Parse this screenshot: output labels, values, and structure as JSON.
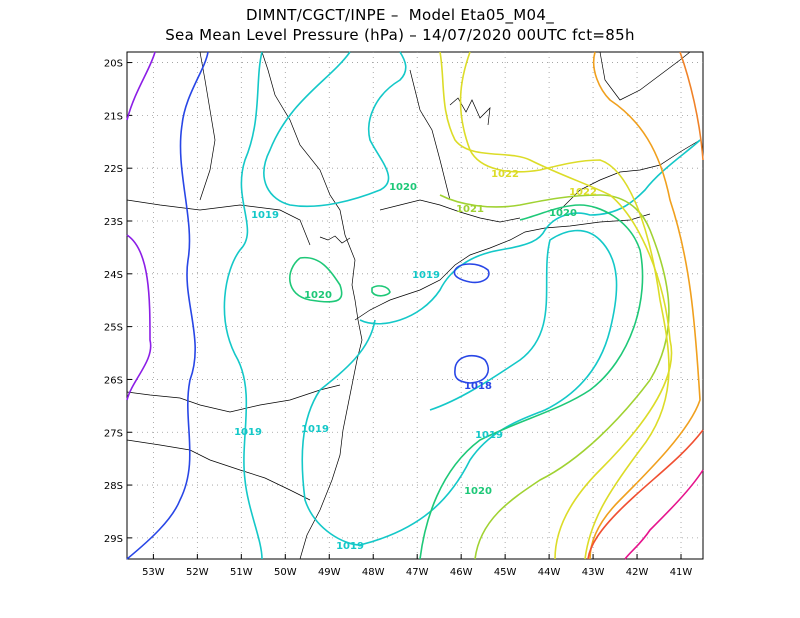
{
  "title": {
    "line1": "DIMNT/CGCT/INPE –  Model Eta05_M04_",
    "line2": "Sea Mean Level Pressure (hPa) – 14/07/2020 00UTC fct=85h"
  },
  "map": {
    "variable": "Sea Mean Level Pressure",
    "units": "hPa",
    "lon_range": [
      -53.6,
      -40.5
    ],
    "lat_range": [
      -29.4,
      -19.8
    ],
    "x_ticks": [
      "53W",
      "52W",
      "51W",
      "50W",
      "49W",
      "48W",
      "47W",
      "46W",
      "45W",
      "44W",
      "43W",
      "42W",
      "41W"
    ],
    "y_ticks": [
      "20S",
      "21S",
      "22S",
      "23S",
      "24S",
      "25S",
      "26S",
      "27S",
      "28S",
      "29S"
    ],
    "grid": "dotted",
    "contour_labels": [
      {
        "text": "1022",
        "color": "#dcdc28"
      },
      {
        "text": "1022",
        "color": "#dcdc28"
      },
      {
        "text": "1021",
        "color": "#a0d232"
      },
      {
        "text": "1020",
        "color": "#1ec878"
      },
      {
        "text": "1020",
        "color": "#1ec878"
      },
      {
        "text": "1020",
        "color": "#1ec878"
      },
      {
        "text": "1020",
        "color": "#1ec878"
      },
      {
        "text": "1019",
        "color": "#14c8c8"
      },
      {
        "text": "1019",
        "color": "#14c8c8"
      },
      {
        "text": "1019",
        "color": "#14c8c8"
      },
      {
        "text": "1019",
        "color": "#14c8c8"
      },
      {
        "text": "1019",
        "color": "#14c8c8"
      },
      {
        "text": "1019",
        "color": "#14c8c8"
      },
      {
        "text": "1018",
        "color": "#2846e6"
      }
    ],
    "level_colors": {
      "1016": "#8c1ee6",
      "1017": "#8c1ee6",
      "1018": "#2846e6",
      "1019": "#14c8c8",
      "1020": "#1ec878",
      "1021": "#a0d232",
      "1022": "#dcdc28",
      "1023": "#f0a01e",
      "1024": "#f08228",
      "1025": "#f05032",
      "1026": "#e6148c"
    }
  }
}
